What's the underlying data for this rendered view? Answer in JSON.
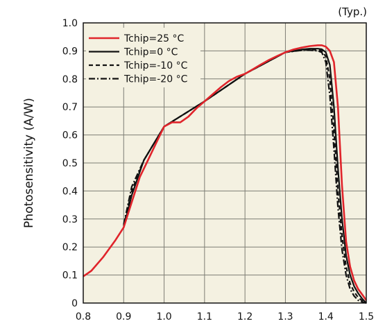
{
  "chart_data": {
    "type": "line",
    "note": "(Typ.)",
    "title": "",
    "xlabel": "",
    "ylabel": "Photosensitivity (A/W)",
    "xlim": [
      0.8,
      1.5
    ],
    "ylim": [
      0,
      1.0
    ],
    "x_ticks": [
      "0.8",
      "0.9",
      "1.0",
      "1.1",
      "1.2",
      "1.3",
      "1.4",
      "1.5"
    ],
    "y_ticks": [
      "0",
      "0.1",
      "0.2",
      "0.3",
      "0.4",
      "0.5",
      "0.6",
      "0.7",
      "0.8",
      "0.9",
      "1.0"
    ],
    "grid": true,
    "legend_position": "top-left",
    "series": [
      {
        "name": "Tchip=25 °C",
        "color": "#e0242b",
        "style": "solid",
        "x": [
          0.8,
          0.82,
          0.85,
          0.88,
          0.9,
          0.92,
          0.94,
          0.96,
          0.98,
          1.0,
          1.02,
          1.04,
          1.06,
          1.08,
          1.1,
          1.12,
          1.14,
          1.16,
          1.18,
          1.2,
          1.22,
          1.24,
          1.26,
          1.28,
          1.3,
          1.32,
          1.34,
          1.36,
          1.38,
          1.39,
          1.4,
          1.41,
          1.42,
          1.43,
          1.44,
          1.45,
          1.46,
          1.47,
          1.48,
          1.49,
          1.5
        ],
        "y": [
          0.095,
          0.115,
          0.165,
          0.225,
          0.27,
          0.36,
          0.45,
          0.51,
          0.57,
          0.63,
          0.645,
          0.645,
          0.665,
          0.695,
          0.72,
          0.745,
          0.77,
          0.792,
          0.808,
          0.818,
          0.835,
          0.852,
          0.868,
          0.882,
          0.895,
          0.905,
          0.912,
          0.917,
          0.92,
          0.92,
          0.915,
          0.9,
          0.86,
          0.7,
          0.42,
          0.22,
          0.13,
          0.08,
          0.05,
          0.03,
          0.01
        ]
      },
      {
        "name": "Tchip=0 °C",
        "color": "#111111",
        "style": "solid",
        "x": [
          0.9,
          0.92,
          0.95,
          1.0,
          1.1,
          1.2,
          1.3,
          1.34,
          1.36,
          1.38,
          1.39,
          1.4,
          1.41,
          1.42,
          1.43,
          1.44,
          1.45,
          1.46,
          1.47,
          1.48,
          1.49,
          1.5
        ],
        "y": [
          0.27,
          0.385,
          0.51,
          0.63,
          0.72,
          0.818,
          0.895,
          0.905,
          0.908,
          0.908,
          0.906,
          0.895,
          0.85,
          0.7,
          0.48,
          0.3,
          0.17,
          0.1,
          0.06,
          0.035,
          0.015,
          0.0
        ]
      },
      {
        "name": "Tchip=-10 °C",
        "color": "#111111",
        "style": "dashed",
        "x": [
          0.9,
          0.92,
          0.95,
          1.0,
          1.1,
          1.2,
          1.3,
          1.34,
          1.36,
          1.38,
          1.39,
          1.4,
          1.41,
          1.42,
          1.43,
          1.44,
          1.45,
          1.46,
          1.47,
          1.48,
          1.49,
          1.5
        ],
        "y": [
          0.275,
          0.4,
          0.51,
          0.63,
          0.72,
          0.818,
          0.895,
          0.903,
          0.905,
          0.904,
          0.9,
          0.88,
          0.8,
          0.62,
          0.4,
          0.24,
          0.13,
          0.07,
          0.04,
          0.02,
          0.008,
          0.0
        ]
      },
      {
        "name": "Tchip=-20 °C",
        "color": "#111111",
        "style": "dashdot",
        "x": [
          0.9,
          0.92,
          0.95,
          1.0,
          1.1,
          1.2,
          1.3,
          1.34,
          1.36,
          1.38,
          1.39,
          1.4,
          1.41,
          1.42,
          1.43,
          1.44,
          1.45,
          1.46,
          1.47,
          1.48,
          1.49,
          1.5
        ],
        "y": [
          0.28,
          0.415,
          0.51,
          0.63,
          0.72,
          0.818,
          0.895,
          0.902,
          0.903,
          0.9,
          0.895,
          0.86,
          0.74,
          0.55,
          0.34,
          0.19,
          0.1,
          0.05,
          0.025,
          0.01,
          0.004,
          0.0
        ]
      }
    ]
  }
}
